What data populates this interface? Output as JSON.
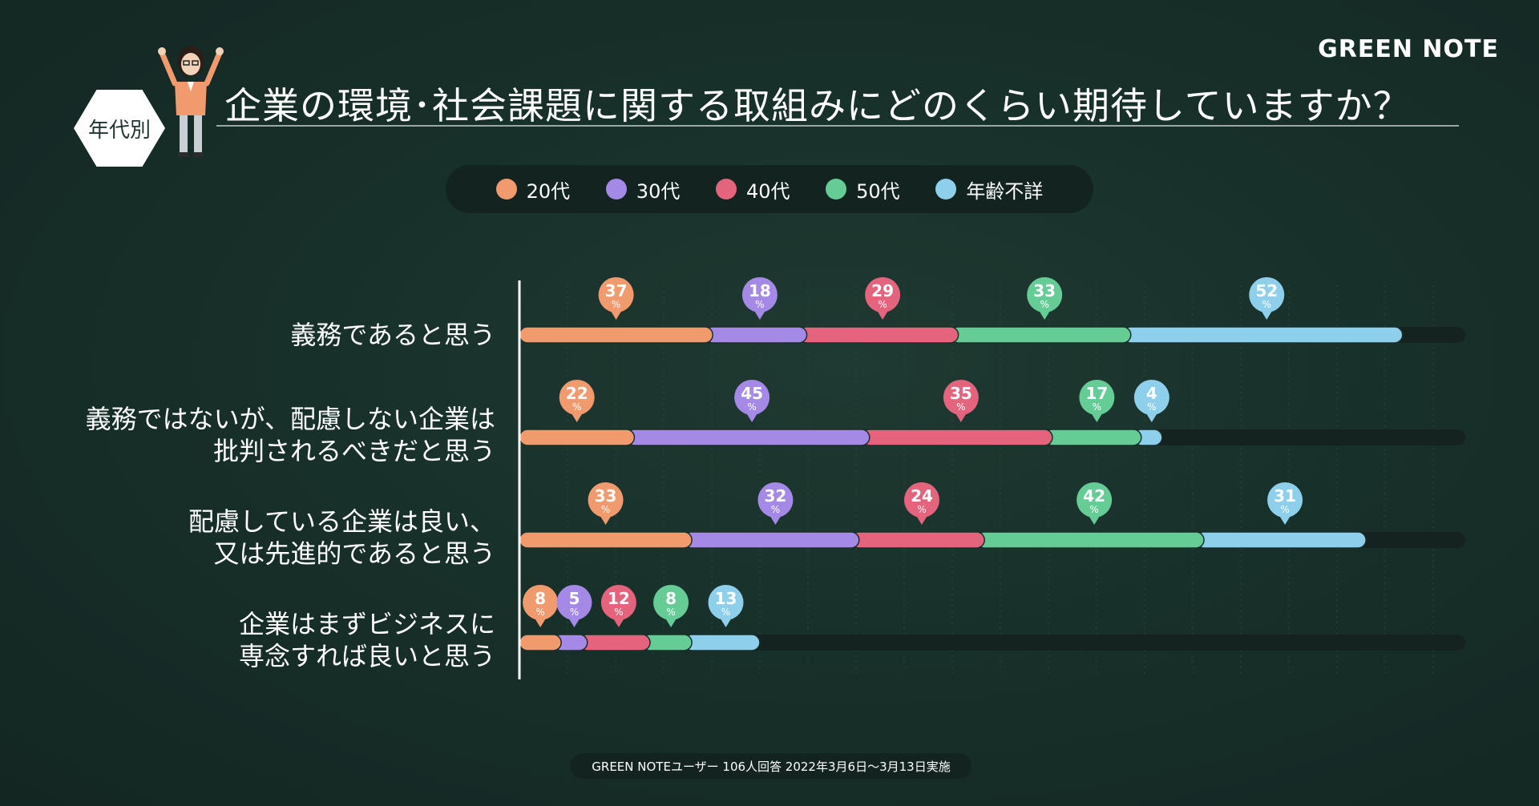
{
  "brand": "GREEN NOTE",
  "badge": "年代別",
  "title": "企業の環境･社会課題に関する取組みにどのくらい期待していますか？",
  "footer": "GREEN NOTEユーザー 106人回答 2022年3月6日〜3月13日実施",
  "colors": {
    "20代": "#f19a6e",
    "30代": "#a489e6",
    "40代": "#e3647c",
    "50代": "#66cc96",
    "年齢不詳": "#8ecfec",
    "track": "#142320",
    "axis": "#ffffff"
  },
  "chart_data": {
    "type": "bar",
    "orientation": "horizontal",
    "stacked": true,
    "unit": "%",
    "legend": [
      "20代",
      "30代",
      "40代",
      "50代",
      "年齢不詳"
    ],
    "legend_position": "top",
    "categories": [
      [
        "義務であると思う"
      ],
      [
        "義務ではないが、配慮しない企業は",
        "批判されるべきだと思う"
      ],
      [
        "配慮している企業は良い、",
        "又は先進的であると思う"
      ],
      [
        "企業はまずビジネスに",
        "専念すれば良いと思う"
      ]
    ],
    "series": [
      {
        "name": "20代",
        "values": [
          37,
          22,
          33,
          8
        ]
      },
      {
        "name": "30代",
        "values": [
          18,
          45,
          32,
          5
        ]
      },
      {
        "name": "40代",
        "values": [
          29,
          35,
          24,
          12
        ]
      },
      {
        "name": "50代",
        "values": [
          33,
          17,
          42,
          8
        ]
      },
      {
        "name": "年齢不詳",
        "values": [
          52,
          4,
          31,
          13
        ]
      }
    ],
    "xlim": [
      0,
      181
    ]
  }
}
